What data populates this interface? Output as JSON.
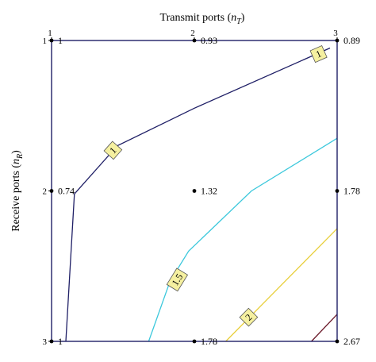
{
  "chart_data": {
    "type": "contour",
    "title": "",
    "xlabel": "Transmit ports (n_T)",
    "xlabel_parts": {
      "main": "Transmit ports (",
      "var": "n",
      "sub": "T",
      "close": ")"
    },
    "ylabel": "Receive ports (n_R)",
    "ylabel_parts": {
      "main": "Receive ports (",
      "var": "n",
      "sub": "R",
      "close": ")"
    },
    "x_ticks": [
      1,
      2,
      3
    ],
    "y_ticks": [
      1,
      2,
      3
    ],
    "xlim": [
      1,
      3
    ],
    "ylim": [
      1,
      3
    ],
    "y_inverted": true,
    "grid": false,
    "points": [
      {
        "x": 1,
        "y": 1,
        "value": 1,
        "label": "1"
      },
      {
        "x": 2,
        "y": 1,
        "value": 0.93,
        "label": "0.93"
      },
      {
        "x": 3,
        "y": 1,
        "value": 0.89,
        "label": "0.89"
      },
      {
        "x": 1,
        "y": 2,
        "value": 0.74,
        "label": "0.74"
      },
      {
        "x": 2,
        "y": 2,
        "value": 1.32,
        "label": "1.32"
      },
      {
        "x": 3,
        "y": 2,
        "value": 1.78,
        "label": "1.78"
      },
      {
        "x": 1,
        "y": 3,
        "value": 1,
        "label": "1"
      },
      {
        "x": 2,
        "y": 3,
        "value": 1.78,
        "label": "1.78"
      },
      {
        "x": 3,
        "y": 3,
        "value": 2.67,
        "label": "2.67"
      }
    ],
    "contours": [
      {
        "level": "1",
        "color": "#1f1f66",
        "path": [
          [
            1.1,
            3.0
          ],
          [
            1.16,
            2.02
          ],
          [
            1.46,
            1.7
          ],
          [
            2.0,
            1.45
          ],
          [
            2.95,
            1.05
          ]
        ],
        "labels": [
          {
            "x": 1.43,
            "y": 1.73
          },
          {
            "x": 2.87,
            "y": 1.09
          }
        ]
      },
      {
        "level": "1.5",
        "color": "#3cc8dc",
        "path": [
          [
            1.68,
            3.0
          ],
          [
            1.83,
            2.6
          ],
          [
            1.96,
            2.4
          ],
          [
            2.4,
            2.0
          ],
          [
            3.0,
            1.65
          ]
        ],
        "labels": [
          {
            "x": 1.88,
            "y": 2.59
          }
        ]
      },
      {
        "level": "2",
        "color": "#e8cf3c",
        "path": [
          [
            2.22,
            3.0
          ],
          [
            3.0,
            2.25
          ]
        ],
        "labels": [
          {
            "x": 2.38,
            "y": 2.84
          }
        ]
      },
      {
        "level": "",
        "color": "#6b1a2a",
        "path": [
          [
            2.82,
            3.0
          ],
          [
            3.0,
            2.82
          ]
        ],
        "labels": []
      }
    ]
  }
}
